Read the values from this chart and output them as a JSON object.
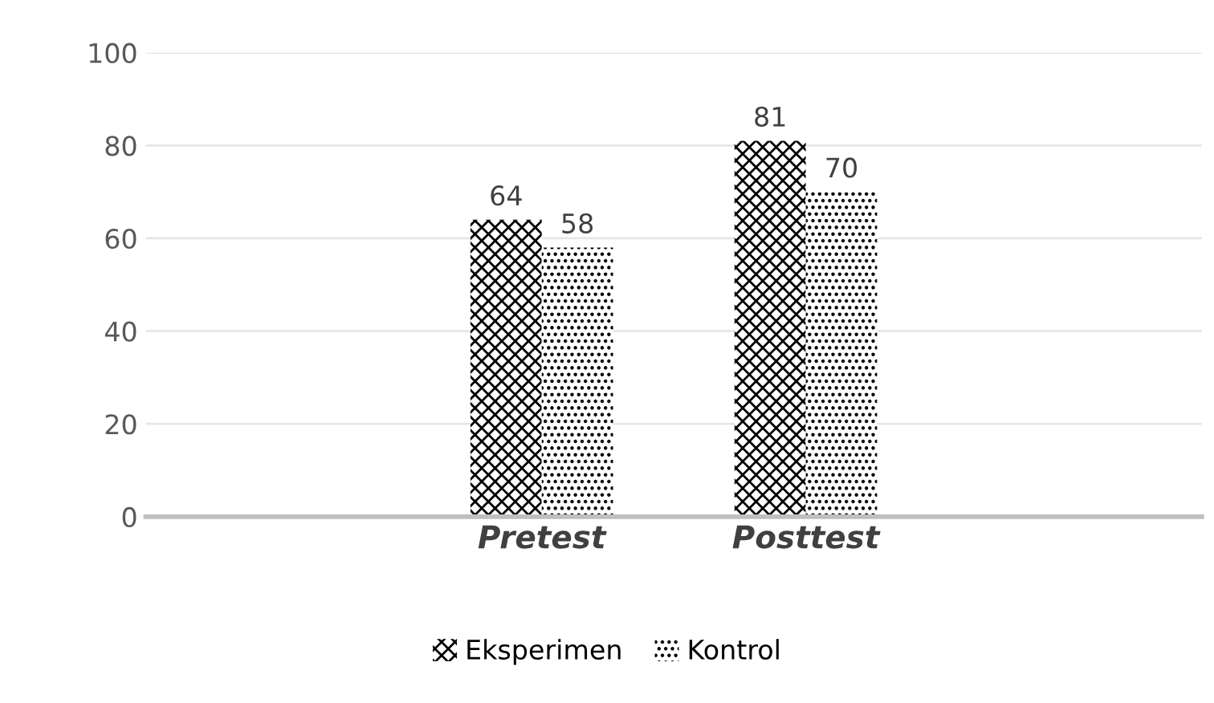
{
  "chart_data": {
    "type": "bar",
    "categories": [
      null,
      "Pretest",
      "Posttest",
      null
    ],
    "series": [
      {
        "name": "Eksperimen",
        "color": "#000000",
        "values": [
          null,
          64,
          81,
          null
        ]
      },
      {
        "name": "Kontrol",
        "color": "#000000",
        "values": [
          null,
          58,
          70,
          null
        ]
      }
    ],
    "ylim": [
      0,
      100
    ],
    "yticks": [
      0,
      20,
      40,
      60,
      80,
      100
    ],
    "grid": "y",
    "legend": "bottom",
    "data_labels": true
  }
}
